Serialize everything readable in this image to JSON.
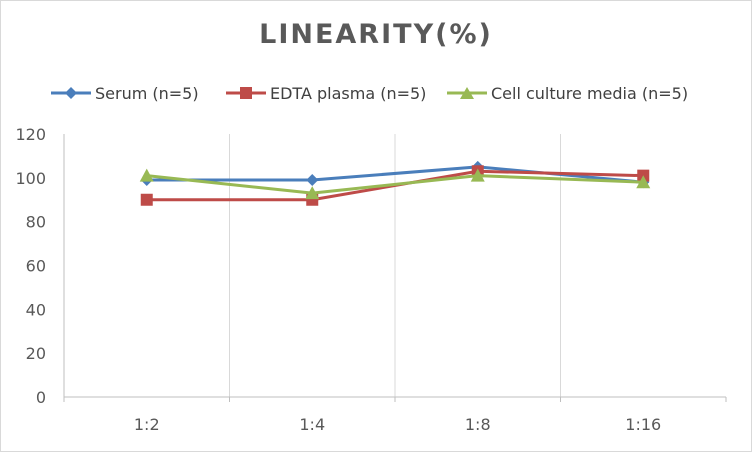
{
  "chart_data": {
    "type": "line",
    "title": "LINEARITY(%)",
    "categories": [
      "1:2",
      "1:4",
      "1:8",
      "1:16"
    ],
    "ylim": [
      0,
      120
    ],
    "yticks": [
      0,
      20,
      40,
      60,
      80,
      100,
      120
    ],
    "grid": "vertical gridlines between categories",
    "legend_position": "top",
    "series": [
      {
        "name": "Serum (n=5)",
        "color": "#4a7ebb",
        "marker": "diamond",
        "values": [
          99,
          99,
          105,
          98
        ]
      },
      {
        "name": "EDTA plasma (n=5)",
        "color": "#be4b48",
        "marker": "square",
        "values": [
          90,
          90,
          103,
          101
        ]
      },
      {
        "name": "Cell culture media (n=5)",
        "color": "#98b954",
        "marker": "triangle",
        "values": [
          101,
          93,
          101,
          98
        ]
      }
    ]
  }
}
